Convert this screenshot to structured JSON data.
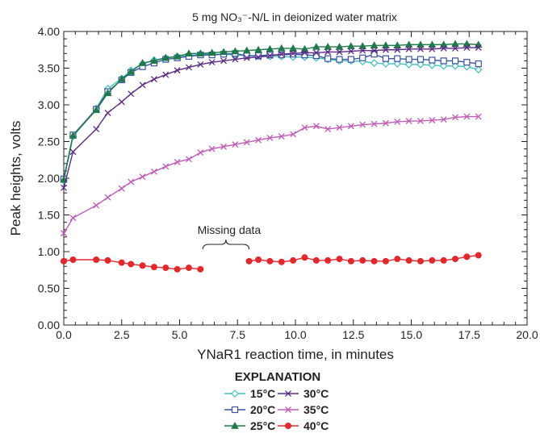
{
  "chart_data": {
    "type": "line",
    "title": "5 mg NO₃⁻-N/L in deionized water matrix",
    "xlabel": "YNaR1 reaction time, in minutes",
    "ylabel": "Peak heights, volts",
    "xlim": [
      0,
      20
    ],
    "ylim": [
      0,
      4
    ],
    "xticks": [
      "0.0",
      "2.5",
      "5.0",
      "7.5",
      "10.0",
      "12.5",
      "15.0",
      "17.5",
      "20.0"
    ],
    "yticks": [
      "0.00",
      "0.50",
      "1.00",
      "1.50",
      "2.00",
      "2.50",
      "3.00",
      "3.50",
      "4.00"
    ],
    "annotation": {
      "text": "Missing data",
      "x_from": 6.0,
      "x_to": 8.0
    },
    "legend_title": "EXPLANATION",
    "series": [
      {
        "name": "15°C",
        "color": "#3fbfbf",
        "marker": "diamond",
        "x": [
          0,
          0.4,
          1.4,
          1.9,
          2.5,
          2.9,
          3.4,
          3.9,
          4.4,
          4.9,
          5.4,
          5.9,
          6.4,
          6.9,
          7.4,
          7.9,
          8.4,
          8.9,
          9.4,
          9.9,
          10.4,
          10.9,
          11.4,
          11.9,
          12.4,
          12.9,
          13.4,
          13.9,
          14.4,
          14.9,
          15.4,
          15.9,
          16.4,
          16.9,
          17.4,
          17.9
        ],
        "y": [
          1.97,
          2.57,
          2.95,
          3.22,
          3.36,
          3.47,
          3.56,
          3.61,
          3.64,
          3.66,
          3.67,
          3.69,
          3.69,
          3.69,
          3.68,
          3.67,
          3.66,
          3.66,
          3.66,
          3.65,
          3.65,
          3.64,
          3.62,
          3.6,
          3.6,
          3.59,
          3.57,
          3.56,
          3.56,
          3.55,
          3.55,
          3.54,
          3.53,
          3.53,
          3.52,
          3.48
        ]
      },
      {
        "name": "20°C",
        "color": "#3a53a4",
        "marker": "square",
        "x": [
          0,
          0.4,
          1.4,
          1.9,
          2.5,
          2.9,
          3.4,
          3.9,
          4.4,
          4.9,
          5.4,
          5.9,
          6.4,
          6.9,
          7.4,
          7.9,
          8.4,
          8.9,
          9.4,
          9.9,
          10.4,
          10.9,
          11.4,
          11.9,
          12.4,
          12.9,
          13.4,
          13.9,
          14.4,
          14.9,
          15.4,
          15.9,
          16.4,
          16.9,
          17.4,
          17.9
        ],
        "y": [
          1.99,
          2.59,
          2.94,
          3.18,
          3.34,
          3.44,
          3.52,
          3.57,
          3.62,
          3.64,
          3.66,
          3.68,
          3.68,
          3.69,
          3.7,
          3.67,
          3.67,
          3.68,
          3.68,
          3.69,
          3.68,
          3.67,
          3.63,
          3.62,
          3.62,
          3.64,
          3.69,
          3.63,
          3.63,
          3.62,
          3.62,
          3.61,
          3.6,
          3.6,
          3.58,
          3.56
        ]
      },
      {
        "name": "25°C",
        "color": "#1f7a4a",
        "marker": "triangle",
        "x": [
          0,
          0.4,
          1.4,
          1.9,
          2.5,
          2.9,
          3.4,
          3.9,
          4.4,
          4.9,
          5.4,
          5.9,
          6.4,
          6.9,
          7.4,
          7.9,
          8.4,
          8.9,
          9.4,
          9.9,
          10.4,
          10.9,
          11.4,
          11.9,
          12.4,
          12.9,
          13.4,
          13.9,
          14.4,
          14.9,
          15.4,
          15.9,
          16.4,
          16.9,
          17.4,
          17.9
        ],
        "y": [
          1.98,
          2.58,
          2.93,
          3.16,
          3.35,
          3.45,
          3.57,
          3.6,
          3.64,
          3.66,
          3.7,
          3.7,
          3.71,
          3.72,
          3.73,
          3.74,
          3.75,
          3.76,
          3.77,
          3.77,
          3.76,
          3.79,
          3.79,
          3.79,
          3.8,
          3.8,
          3.81,
          3.81,
          3.81,
          3.82,
          3.82,
          3.82,
          3.82,
          3.83,
          3.83,
          3.82
        ]
      },
      {
        "name": "30°C",
        "color": "#5b2a86",
        "marker": "x",
        "x": [
          0,
          0.4,
          1.4,
          1.9,
          2.5,
          2.9,
          3.4,
          3.9,
          4.4,
          4.9,
          5.4,
          5.9,
          6.4,
          6.9,
          7.4,
          7.9,
          8.4,
          8.9,
          9.4,
          9.9,
          10.4,
          10.9,
          11.4,
          11.9,
          12.4,
          12.9,
          13.4,
          13.9,
          14.4,
          14.9,
          15.4,
          15.9,
          16.4,
          16.9,
          17.4,
          17.9
        ],
        "y": [
          1.87,
          2.36,
          2.67,
          2.89,
          3.04,
          3.15,
          3.27,
          3.35,
          3.41,
          3.47,
          3.51,
          3.55,
          3.58,
          3.6,
          3.62,
          3.64,
          3.65,
          3.67,
          3.69,
          3.7,
          3.71,
          3.71,
          3.72,
          3.72,
          3.73,
          3.74,
          3.74,
          3.75,
          3.75,
          3.76,
          3.76,
          3.76,
          3.77,
          3.77,
          3.78,
          3.78
        ]
      },
      {
        "name": "35°C",
        "color": "#c25cb8",
        "marker": "x",
        "x": [
          0,
          0.4,
          1.4,
          1.9,
          2.5,
          2.9,
          3.4,
          3.9,
          4.4,
          4.9,
          5.4,
          5.9,
          6.4,
          6.9,
          7.4,
          7.9,
          8.4,
          8.9,
          9.4,
          9.9,
          10.4,
          10.9,
          11.4,
          11.9,
          12.4,
          12.9,
          13.4,
          13.9,
          14.4,
          14.9,
          15.4,
          15.9,
          16.4,
          16.9,
          17.4,
          17.9
        ],
        "y": [
          1.25,
          1.46,
          1.63,
          1.74,
          1.86,
          1.95,
          2.02,
          2.09,
          2.16,
          2.22,
          2.26,
          2.35,
          2.4,
          2.43,
          2.46,
          2.49,
          2.52,
          2.55,
          2.57,
          2.6,
          2.69,
          2.71,
          2.67,
          2.69,
          2.71,
          2.73,
          2.74,
          2.75,
          2.77,
          2.78,
          2.78,
          2.79,
          2.8,
          2.83,
          2.84,
          2.84
        ]
      },
      {
        "name": "40°C",
        "color": "#e5262b",
        "marker": "circle",
        "x": [
          0,
          0.4,
          1.4,
          1.9,
          2.5,
          2.9,
          3.4,
          3.9,
          4.4,
          4.9,
          5.4,
          5.9,
          8.0,
          8.4,
          8.9,
          9.4,
          9.9,
          10.4,
          10.9,
          11.4,
          11.9,
          12.4,
          12.9,
          13.4,
          13.9,
          14.4,
          14.9,
          15.4,
          15.9,
          16.4,
          16.9,
          17.4,
          17.9
        ],
        "y": [
          0.87,
          0.89,
          0.89,
          0.88,
          0.85,
          0.83,
          0.81,
          0.79,
          0.78,
          0.76,
          0.78,
          0.76,
          0.87,
          0.89,
          0.87,
          0.86,
          0.88,
          0.92,
          0.88,
          0.88,
          0.9,
          0.87,
          0.88,
          0.87,
          0.87,
          0.9,
          0.88,
          0.87,
          0.88,
          0.88,
          0.9,
          0.93,
          0.95
        ]
      }
    ]
  }
}
